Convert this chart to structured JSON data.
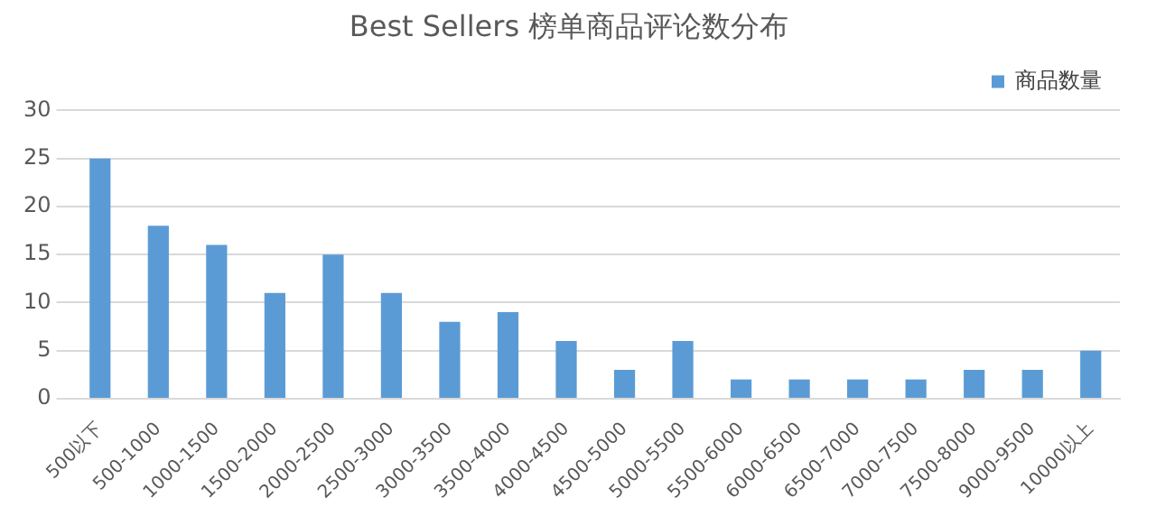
{
  "chart_data": {
    "type": "bar",
    "title": "Best Sellers 榜单商品评论数分布",
    "categories": [
      "500以下",
      "500-1000",
      "1000-1500",
      "1500-2000",
      "2000-2500",
      "2500-3000",
      "3000-3500",
      "3500-4000",
      "4000-4500",
      "4500-5000",
      "5000-5500",
      "5500-6000",
      "6000-6500",
      "6500-7000",
      "7000-7500",
      "7500-8000",
      "9000-9500",
      "10000以上"
    ],
    "series": [
      {
        "name": "商品数量",
        "color": "#5b9bd5",
        "values": [
          25,
          18,
          16,
          11,
          15,
          11,
          8,
          9,
          6,
          3,
          6,
          2,
          2,
          2,
          2,
          3,
          3,
          5
        ]
      }
    ],
    "ylim": [
      0,
      30
    ],
    "yticks": [
      0,
      5,
      10,
      15,
      20,
      25,
      30
    ],
    "grid": "y",
    "legend": "top right"
  }
}
